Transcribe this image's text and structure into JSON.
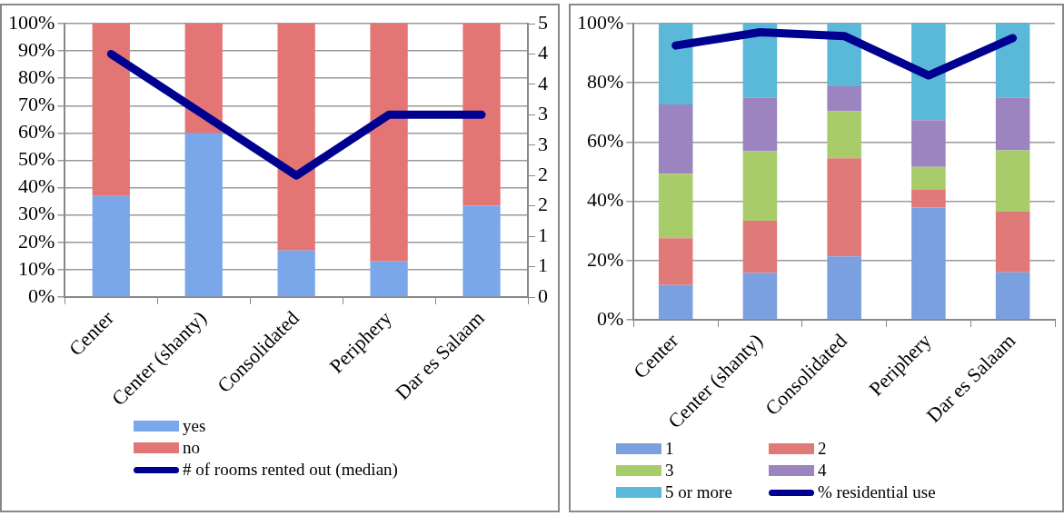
{
  "chart_data": [
    {
      "type": "bar",
      "stacked": true,
      "categories": [
        "Center",
        "Center (shanty)",
        "Consolidated",
        "Periphery",
        "Dar es Salaam"
      ],
      "series": [
        {
          "name": "yes",
          "color": "#7aa7ea",
          "values": [
            37,
            60,
            17,
            13,
            33.5
          ]
        },
        {
          "name": "no",
          "color": "#e37575",
          "values": [
            63,
            40,
            83,
            87,
            66.5
          ]
        },
        {
          "name": "# of rooms rented out (median)",
          "type": "line",
          "axis": "y2",
          "color": "#000090",
          "values": [
            4,
            3,
            2,
            3,
            3
          ]
        }
      ],
      "ylim": [
        0,
        100
      ],
      "yticks": [
        {
          "value": 0,
          "label": "0%"
        },
        {
          "value": 10,
          "label": "10%"
        },
        {
          "value": 20,
          "label": "20%"
        },
        {
          "value": 30,
          "label": "30%"
        },
        {
          "value": 40,
          "label": "40%"
        },
        {
          "value": 50,
          "label": "50%"
        },
        {
          "value": 60,
          "label": "60%"
        },
        {
          "value": 70,
          "label": "70%"
        },
        {
          "value": 80,
          "label": "80%"
        },
        {
          "value": 90,
          "label": "90%"
        },
        {
          "value": 100,
          "label": "100%"
        }
      ],
      "y2lim": [
        0,
        4.5
      ],
      "y2ticks": [
        0,
        {
          "value": 0.5,
          "label": "1"
        },
        1,
        {
          "value": 1.5,
          "label": "2"
        },
        2,
        {
          "value": 2.5,
          "label": "3"
        },
        3,
        {
          "value": 3.5,
          "label": "4"
        },
        4,
        {
          "value": 4.5,
          "label": "5"
        }
      ],
      "grid": "y",
      "legend": "bottom",
      "marker": "none"
    },
    {
      "type": "bar",
      "stacked": true,
      "categories": [
        "Center",
        "Center (shanty)",
        "Consolidated",
        "Periphery",
        "Dar es Salaam"
      ],
      "series": [
        {
          "name": "1",
          "color": "#7ba0e0",
          "values": [
            11.7,
            15.8,
            21.4,
            37.9,
            16
          ]
        },
        {
          "name": "2",
          "color": "#e07a78",
          "values": [
            15.8,
            17.6,
            33.1,
            6,
            20.5
          ]
        },
        {
          "name": "3",
          "color": "#a8cc6a",
          "values": [
            21.8,
            23.5,
            15.9,
            7.7,
            20.7
          ]
        },
        {
          "name": "4",
          "color": "#9c84c0",
          "values": [
            23.4,
            18,
            8.4,
            15.8,
            17.7
          ]
        },
        {
          "name": "5 or more",
          "color": "#5ab8d8",
          "values": [
            27.3,
            25.1,
            21.2,
            32.6,
            25.1
          ]
        },
        {
          "name": "% residential use",
          "type": "line",
          "color": "#000090",
          "values": [
            92.6,
            97.1,
            95.8,
            82.5,
            95.1
          ]
        }
      ],
      "ylim": [
        0,
        100
      ],
      "yticks": [
        {
          "value": 0,
          "label": "0%"
        },
        {
          "value": 20,
          "label": "20%"
        },
        {
          "value": 40,
          "label": "40%"
        },
        {
          "value": 60,
          "label": "60%"
        },
        {
          "value": 80,
          "label": "80%"
        },
        {
          "value": 100,
          "label": "100%"
        }
      ],
      "grid": "y",
      "legend": "bottom",
      "marker": "none"
    }
  ]
}
